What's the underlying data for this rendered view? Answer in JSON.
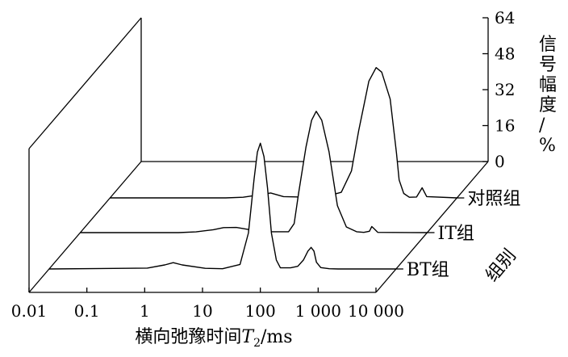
{
  "chart_data": {
    "type": "line",
    "subtype": "3d-waterfall",
    "title": "",
    "xlabel": {
      "prefix": "横向弛豫时间",
      "var": "T",
      "sub": "2",
      "unit": "/ms"
    },
    "ylabel": "信号幅度/%",
    "zlabel": "组别",
    "x_scale": "log",
    "xlim": [
      0.01,
      10000
    ],
    "ylim": [
      0,
      64
    ],
    "x_ticks": [
      0.01,
      0.1,
      1,
      10,
      100,
      1000,
      10000
    ],
    "x_tick_labels": [
      "0.01",
      "0.1",
      "1",
      "10",
      "100",
      "1 000",
      "10 000"
    ],
    "y_ticks": [
      0,
      16,
      32,
      48,
      64
    ],
    "y_tick_labels": [
      "0",
      "16",
      "32",
      "48",
      "64"
    ],
    "groups": [
      "BT组",
      "IT组",
      "对照组"
    ],
    "series": [
      {
        "name": "BT组",
        "x": [
          0.01,
          0.5,
          1,
          1.4,
          2,
          5,
          10,
          20,
          28,
          35,
          40,
          45,
          52,
          60,
          70,
          85,
          100,
          150,
          200,
          250,
          300,
          340,
          380,
          420,
          500,
          700,
          1000,
          10000
        ],
        "y": [
          0,
          0.4,
          1.8,
          2.8,
          1.8,
          0.3,
          0.1,
          2,
          16,
          40,
          52,
          56,
          50,
          36,
          16,
          4,
          0.5,
          0.5,
          1.2,
          4,
          8,
          9.6,
          8,
          3,
          0.6,
          0.1,
          0,
          0
        ]
      },
      {
        "name": "IT组",
        "x": [
          0.01,
          0.5,
          1,
          2,
          3,
          5,
          8,
          10,
          15,
          20,
          30,
          40,
          50,
          60,
          80,
          100,
          120,
          150,
          200,
          280,
          400,
          600,
          800,
          1000,
          1100,
          1200,
          1400,
          10000
        ],
        "y": [
          0,
          0,
          0.3,
          1.3,
          2.2,
          2.3,
          1.4,
          0.4,
          0.4,
          0.4,
          0.4,
          0.4,
          4,
          18,
          38,
          50,
          54,
          50,
          36,
          12,
          2.5,
          0.4,
          0.1,
          0.6,
          2.7,
          1.8,
          0.1,
          0
        ]
      },
      {
        "name": "对照组",
        "x": [
          0.01,
          1,
          2,
          4,
          6,
          10,
          20,
          50,
          100,
          150,
          200,
          250,
          300,
          400,
          500,
          700,
          900,
          1000,
          1200,
          1500,
          2000,
          2500,
          3000,
          10000
        ],
        "y": [
          0,
          0,
          0.3,
          1.4,
          2.2,
          0.6,
          0.4,
          0.4,
          2.5,
          12,
          30,
          42,
          52,
          58,
          56,
          44,
          20,
          8,
          2,
          0.3,
          0.4,
          4.5,
          0.6,
          0
        ]
      }
    ],
    "grid": false,
    "legend": "none"
  }
}
